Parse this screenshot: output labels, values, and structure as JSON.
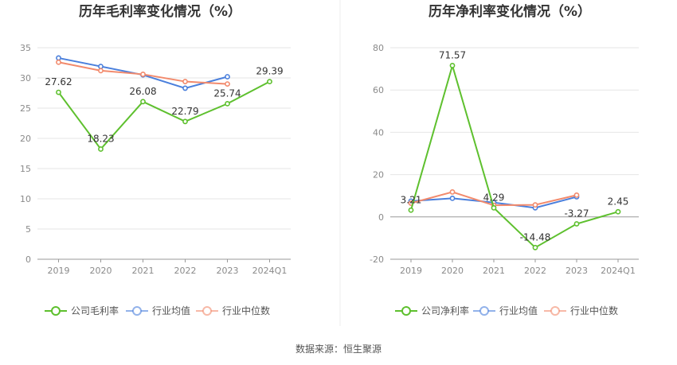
{
  "colors": {
    "company": "#5ec02e",
    "avg": "#4a7fdc",
    "median": "#f28a6c",
    "grid": "#e6e6e6",
    "axis": "#999999",
    "divider": "#eeeeee"
  },
  "legend_labels": {
    "avg": "行业均值",
    "median": "行业中位数"
  },
  "source": "数据来源：恒生聚源",
  "chart_data": [
    {
      "type": "line",
      "title": "历年毛利率变化情况（%）",
      "categories": [
        "2019",
        "2020",
        "2021",
        "2022",
        "2023",
        "2024Q1"
      ],
      "ylim": [
        0,
        35
      ],
      "yticks": [
        0,
        5,
        10,
        15,
        20,
        25,
        30,
        35
      ],
      "grid": true,
      "legend_position": "bottom",
      "series": [
        {
          "name": "公司毛利率",
          "role": "company",
          "values": [
            27.62,
            18.23,
            26.08,
            22.79,
            25.74,
            29.39
          ],
          "labels": [
            "27.62",
            "18.23",
            "26.08",
            "22.79",
            "25.74",
            "29.39"
          ]
        },
        {
          "name": "行业均值",
          "role": "avg",
          "values": [
            33.3,
            31.9,
            30.5,
            28.3,
            30.2,
            null
          ]
        },
        {
          "name": "行业中位数",
          "role": "median",
          "values": [
            32.6,
            31.2,
            30.6,
            29.4,
            29.0,
            null
          ]
        }
      ]
    },
    {
      "type": "line",
      "title": "历年净利率变化情况（%）",
      "categories": [
        "2019",
        "2020",
        "2021",
        "2022",
        "2023",
        "2024Q1"
      ],
      "ylim": [
        -20,
        80
      ],
      "yticks": [
        -20,
        0,
        20,
        40,
        60,
        80
      ],
      "grid": true,
      "legend_position": "bottom",
      "series": [
        {
          "name": "公司净利率",
          "role": "company",
          "values": [
            3.21,
            71.57,
            4.29,
            -14.48,
            -3.27,
            2.45
          ],
          "labels": [
            "3.21",
            "71.57",
            "4.29",
            "-14.48",
            "-3.27",
            "2.45"
          ]
        },
        {
          "name": "行业均值",
          "role": "avg",
          "values": [
            7.5,
            8.8,
            6.8,
            4.3,
            9.5,
            null
          ]
        },
        {
          "name": "行业中位数",
          "role": "median",
          "values": [
            6.5,
            11.8,
            5.5,
            5.7,
            10.3,
            null
          ]
        }
      ]
    }
  ]
}
